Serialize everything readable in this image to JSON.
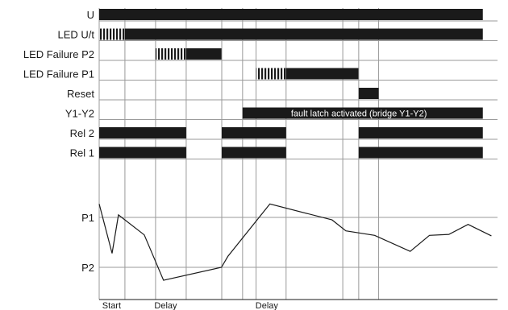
{
  "diagram": {
    "signals": [
      {
        "label": "U",
        "segments": [
          {
            "type": "solid",
            "t0": 0.0,
            "t1": 12.52
          }
        ]
      },
      {
        "label": "LED U/t",
        "segments": [
          {
            "type": "hatch",
            "t0": 0.0,
            "t1": 0.84
          },
          {
            "type": "solid",
            "t0": 0.84,
            "t1": 12.52
          }
        ]
      },
      {
        "label": "LED Failure P2",
        "segments": [
          {
            "type": "hatch",
            "t0": 1.84,
            "t1": 2.84
          },
          {
            "type": "solid",
            "t0": 2.84,
            "t1": 3.99
          }
        ]
      },
      {
        "label": "LED Failure P1",
        "segments": [
          {
            "type": "hatch",
            "t0": 5.12,
            "t1": 6.1
          },
          {
            "type": "solid",
            "t0": 6.1,
            "t1": 8.46
          }
        ]
      },
      {
        "label": "Reset",
        "segments": [
          {
            "type": "solid",
            "t0": 8.47,
            "t1": 9.12
          }
        ]
      },
      {
        "label": "Y1-Y2",
        "segments": [
          {
            "type": "solid",
            "t0": 4.68,
            "t1": 12.52,
            "text": "fault latch activated (bridge Y1-Y2)"
          }
        ]
      },
      {
        "label": "Rel 2",
        "segments": [
          {
            "type": "solid",
            "t0": 0.0,
            "t1": 2.84
          },
          {
            "type": "solid",
            "t0": 4.0,
            "t1": 6.1
          },
          {
            "type": "solid",
            "t0": 8.47,
            "t1": 12.52
          }
        ]
      },
      {
        "label": "Rel 1",
        "segments": [
          {
            "type": "solid",
            "t0": 0.0,
            "t1": 2.84
          },
          {
            "type": "solid",
            "t0": 4.0,
            "t1": 6.1
          },
          {
            "type": "solid",
            "t0": 8.47,
            "t1": 12.52
          }
        ]
      }
    ],
    "gridlines": [
      0.0,
      0.84,
      1.84,
      2.84,
      4.0,
      4.68,
      5.12,
      6.1,
      7.95,
      8.47,
      9.12
    ],
    "pressure": {
      "levels": [
        {
          "label": "P1",
          "value": 1.0
        },
        {
          "label": "P2",
          "value": 0.0
        }
      ],
      "curve": [
        [
          0.0,
          1.27
        ],
        [
          0.42,
          0.28
        ],
        [
          0.63,
          1.05
        ],
        [
          1.47,
          0.65
        ],
        [
          2.1,
          -0.26
        ],
        [
          3.99,
          0.0
        ],
        [
          4.2,
          0.22
        ],
        [
          5.57,
          1.27
        ],
        [
          7.6,
          0.95
        ],
        [
          8.05,
          0.73
        ],
        [
          8.99,
          0.64
        ],
        [
          10.15,
          0.32
        ],
        [
          10.78,
          0.64
        ],
        [
          11.41,
          0.66
        ],
        [
          12.04,
          0.86
        ],
        [
          12.8,
          0.63
        ]
      ]
    },
    "markers": [
      {
        "label": "Start",
        "t": 0.1
      },
      {
        "label": "Delay",
        "t": 1.8
      },
      {
        "label": "Delay",
        "t": 5.1
      }
    ]
  }
}
